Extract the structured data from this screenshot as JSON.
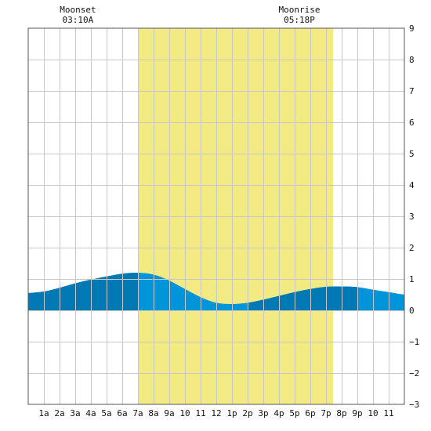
{
  "chart_data": {
    "type": "area",
    "title": "",
    "xlabel": "",
    "ylabel": "",
    "x_tick_labels": [
      "1a",
      "2a",
      "3a",
      "4a",
      "5a",
      "6a",
      "7a",
      "8a",
      "9a",
      "10",
      "11",
      "12",
      "1p",
      "2p",
      "3p",
      "4p",
      "5p",
      "6p",
      "7p",
      "8p",
      "9p",
      "10",
      "11"
    ],
    "x_range_hours": [
      0,
      24
    ],
    "ylim": [
      -3,
      9
    ],
    "y_tick_labels": [
      "9",
      "8",
      "7",
      "6",
      "5",
      "4",
      "3",
      "2",
      "1",
      "0",
      "−1",
      "−2",
      "−3"
    ],
    "grid": true,
    "daylight_hours": [
      7.05,
      19.45
    ],
    "series": [
      {
        "x_hours": [
          0,
          1,
          2,
          3,
          4,
          5,
          6,
          7,
          8,
          9,
          10,
          11,
          12,
          13,
          14,
          15,
          16,
          17,
          18,
          19,
          20,
          21,
          22,
          23,
          24
        ],
        "values": [
          0.55,
          0.6,
          0.72,
          0.86,
          0.98,
          1.08,
          1.17,
          1.2,
          1.14,
          0.95,
          0.68,
          0.42,
          0.24,
          0.2,
          0.24,
          0.34,
          0.46,
          0.58,
          0.68,
          0.75,
          0.76,
          0.74,
          0.66,
          0.58,
          0.5
        ]
      }
    ],
    "annotations": [
      {
        "label": "Moonset",
        "time": "03:10A",
        "hour": 3.17
      },
      {
        "label": "Moonrise",
        "time": "05:18P",
        "hour": 17.3
      }
    ],
    "colors": {
      "daylight": "#f3ea84",
      "tide_dark": "#0079b5",
      "tide_light": "#0095d9",
      "grid": "#c8c8c8",
      "frame": "#555555"
    },
    "dark_tide_hour_ranges": [
      [
        0,
        7.05
      ],
      [
        14,
        21
      ]
    ]
  }
}
